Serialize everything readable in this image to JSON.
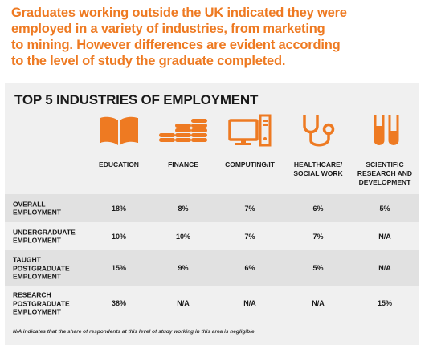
{
  "intro": {
    "lines": [
      "Graduates working outside the UK indicated they were",
      "employed in a variety of industries, from marketing",
      "to mining. However differences are evident according",
      "to the level of study the graduate completed."
    ]
  },
  "table": {
    "title": "TOP 5 INDUSTRIES OF EMPLOYMENT",
    "columns": [
      {
        "label": "EDUCATION",
        "icon": "book-icon"
      },
      {
        "label": "FINANCE",
        "icon": "coins-icon"
      },
      {
        "label": "COMPUTING/IT",
        "icon": "computer-icon"
      },
      {
        "label": "HEALTHCARE/\nSOCIAL WORK",
        "icon": "stethoscope-icon"
      },
      {
        "label": "SCIENTIFIC\nRESEARCH AND\nDEVELOPMENT",
        "icon": "test-tubes-icon"
      }
    ],
    "rows": [
      {
        "label": "OVERALL\nEMPLOYMENT",
        "values": [
          "18%",
          "8%",
          "7%",
          "6%",
          "5%"
        ]
      },
      {
        "label": "UNDERGRADUATE\nEMPLOYMENT",
        "values": [
          "10%",
          "10%",
          "7%",
          "7%",
          "N/A"
        ]
      },
      {
        "label": "TAUGHT\nPOSTGRADUATE\nEMPLOYMENT",
        "values": [
          "15%",
          "9%",
          "6%",
          "5%",
          "N/A"
        ]
      },
      {
        "label": "RESEARCH\nPOSTGRADUATE\nEMPLOYMENT",
        "values": [
          "38%",
          "N/A",
          "N/A",
          "N/A",
          "15%"
        ]
      }
    ],
    "footnote": "N/A indicates that the share of respondents at this level of study working in this area is negligible"
  },
  "colors": {
    "accent": "#ee7a22",
    "panel": "#f0f0f0",
    "stripe": "#e1e1e1",
    "text": "#1a1a1a"
  }
}
